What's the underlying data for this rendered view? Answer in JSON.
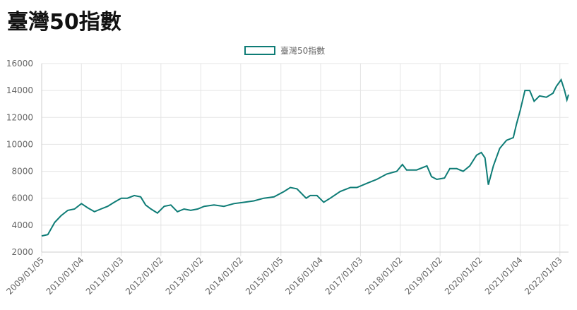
{
  "chart_data": {
    "type": "line",
    "title": "臺灣50指數",
    "x": [
      "2009/01/05",
      "2009/03/02",
      "2009/05/04",
      "2009/07/01",
      "2009/09/01",
      "2009/11/02",
      "2010/01/04",
      "2010/03/01",
      "2010/05/03",
      "2010/07/01",
      "2010/09/01",
      "2010/11/01",
      "2011/01/03",
      "2011/03/01",
      "2011/05/03",
      "2011/07/01",
      "2011/08/15",
      "2011/10/03",
      "2011/12/01",
      "2012/02/01",
      "2012/04/02",
      "2012/06/01",
      "2012/08/01",
      "2012/10/01",
      "2012/12/03",
      "2013/02/01",
      "2013/05/02",
      "2013/08/01",
      "2013/11/01",
      "2014/02/05",
      "2014/05/02",
      "2014/08/01",
      "2014/11/03",
      "2015/02/02",
      "2015/04/01",
      "2015/06/01",
      "2015/08/24",
      "2015/10/01",
      "2015/12/01",
      "2016/02/01",
      "2016/04/01",
      "2016/07/01",
      "2016/10/03",
      "2016/12/01",
      "2017/03/01",
      "2017/06/01",
      "2017/09/01",
      "2017/12/01",
      "2018/01/22",
      "2018/03/01",
      "2018/06/01",
      "2018/09/03",
      "2018/10/15",
      "2018/12/03",
      "2019/02/11",
      "2019/04/01",
      "2019/06/03",
      "2019/08/01",
      "2019/10/01",
      "2019/12/02",
      "2020/01/14",
      "2020/02/17",
      "2020/03/19",
      "2020/05/04",
      "2020/07/01",
      "2020/09/01",
      "2020/11/02",
      "2020/12/01",
      "2021/01/04",
      "2021/02/17",
      "2021/04/01",
      "2021/05/12",
      "2021/07/01",
      "2021/09/01",
      "2021/11/01",
      "2021/12/01",
      "2022/01/14",
      "2022/02/15",
      "2022/03/08",
      "2022/03/23"
    ],
    "series": [
      {
        "name": "臺灣50指數",
        "color": "#0e7c76",
        "values": [
          3200,
          3300,
          4200,
          4700,
          5100,
          5200,
          5600,
          5300,
          5000,
          5200,
          5400,
          5700,
          6000,
          6000,
          6200,
          6100,
          5500,
          5200,
          4900,
          5400,
          5500,
          5000,
          5200,
          5100,
          5200,
          5400,
          5500,
          5400,
          5600,
          5700,
          5800,
          6000,
          6100,
          6500,
          6800,
          6700,
          6000,
          6200,
          6200,
          5700,
          6000,
          6500,
          6800,
          6800,
          7100,
          7400,
          7800,
          8000,
          8500,
          8100,
          8100,
          8400,
          7600,
          7400,
          7500,
          8200,
          8200,
          8000,
          8400,
          9200,
          9400,
          9000,
          7000,
          8400,
          9700,
          10300,
          10500,
          11500,
          12500,
          14000,
          14000,
          13200,
          13600,
          13500,
          13800,
          14300,
          14800,
          14000,
          13300,
          13700
        ]
      }
    ],
    "ylim": [
      2000,
      16000
    ],
    "yticks": [
      2000,
      4000,
      6000,
      8000,
      10000,
      12000,
      14000,
      16000
    ],
    "xticks": [
      "2009/01/05",
      "2010/01/04",
      "2011/01/03",
      "2012/01/02",
      "2013/01/02",
      "2014/01/02",
      "2015/01/05",
      "2016/01/04",
      "2017/01/03",
      "2018/01/02",
      "2019/01/02",
      "2020/01/02",
      "2021/01/04",
      "2022/01/03"
    ],
    "grid": true,
    "legend": "top"
  }
}
